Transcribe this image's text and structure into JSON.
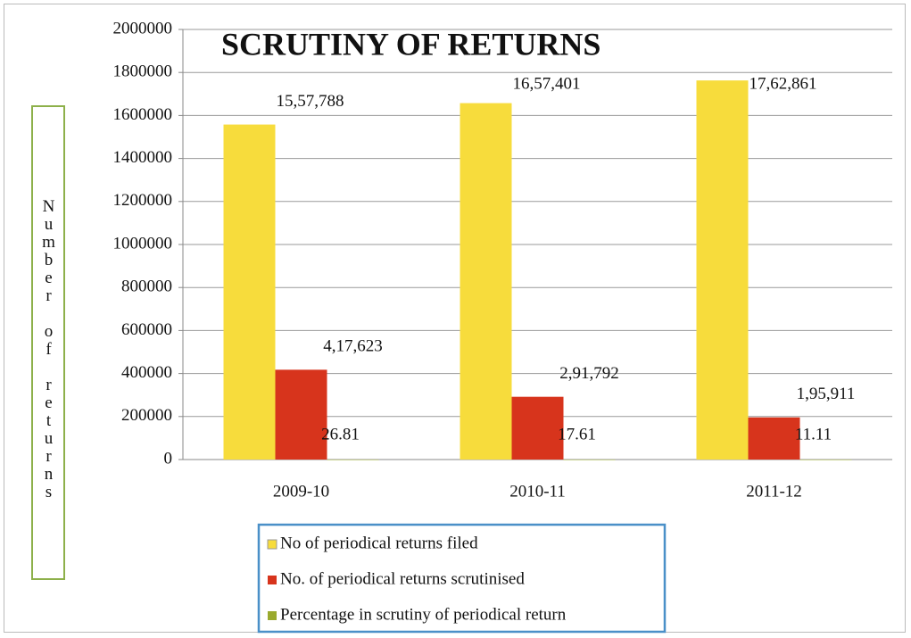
{
  "chart_data": {
    "type": "bar",
    "title": "SCRUTINY OF RETURNS",
    "y_label": "Number of returns",
    "categories": [
      "2009-10",
      "2010-11",
      "2011-12"
    ],
    "series": [
      {
        "name": "No of periodical returns  filed",
        "color": "#f7dc3c",
        "values": [
          1557788,
          1657401,
          1762861
        ],
        "value_labels": [
          "15,57,788",
          "16,57,401",
          "17,62,861"
        ]
      },
      {
        "name": "No. of periodical returns scrutinised",
        "color": "#d7341c",
        "values": [
          417623,
          291792,
          195911
        ],
        "value_labels": [
          "4,17,623",
          "2,91,792",
          "1,95,911"
        ]
      },
      {
        "name": "Percentage in scrutiny of periodical return",
        "color": "#9aaa2e",
        "values": [
          26.81,
          17.61,
          11.11
        ]
      }
    ],
    "ylim": [
      0,
      2000000
    ],
    "yticks": [
      0,
      200000,
      400000,
      600000,
      800000,
      1000000,
      1200000,
      1400000,
      1600000,
      1800000,
      2000000
    ],
    "grid": true
  }
}
